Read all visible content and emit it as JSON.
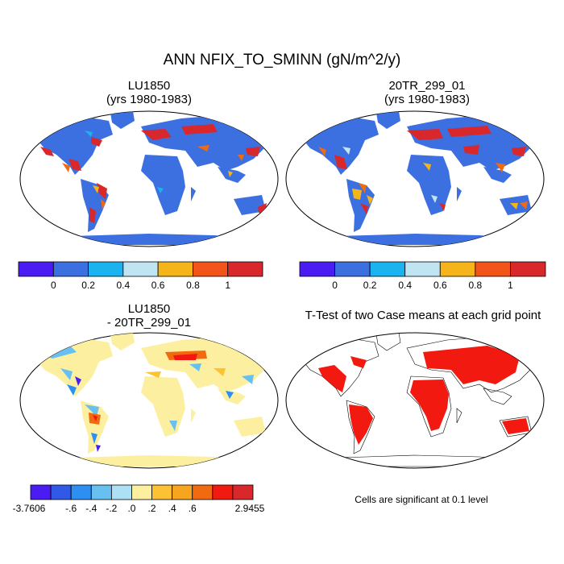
{
  "figure": {
    "title": "ANN NFIX_TO_SMINN (gN/m^2/y)"
  },
  "panels": {
    "top_left": {
      "title_line1": "LU1850",
      "title_line2": "(yrs 1980-1983)"
    },
    "top_right": {
      "title_line1": "20TR_299_01",
      "title_line2": "(yrs 1980-1983)"
    },
    "bottom_left": {
      "title_line1": "LU1850",
      "title_line2": "- 20TR_299_01"
    },
    "bottom_right": {
      "title_line1": "T-Test of two Case means at each grid point"
    }
  },
  "colorbar_top": {
    "colors": [
      "#4a1bf2",
      "#3c6fe0",
      "#1ab2ef",
      "#bfe4f2",
      "#f5b41a",
      "#f2541a",
      "#d8282c"
    ],
    "labels": [
      "0",
      "0.2",
      "0.4",
      "0.6",
      "0.8",
      "1"
    ]
  },
  "colorbar_diff": {
    "colors": [
      "#4a1bf2",
      "#2f59e6",
      "#2d8ff2",
      "#68c0f0",
      "#aee0f5",
      "#fcf0a0",
      "#fcc233",
      "#f7a41e",
      "#f26a10",
      "#f21a10",
      "#d8282c"
    ],
    "labels": [
      "-3.7606",
      "-.6",
      "-.4",
      "-.2",
      ".0",
      ".2",
      ".4",
      ".6",
      "2.9455"
    ]
  },
  "significance_note": "Cells are significant at 0.1 level",
  "chart_data": {
    "type": "heatmap",
    "title": "ANN NFIX_TO_SMINN (gN/m^2/y)",
    "units": "gN/m^2/y",
    "panels": [
      {
        "name": "LU1850",
        "period": "yrs 1980-1983",
        "contour_levels": [
          0,
          0.2,
          0.4,
          0.6,
          0.8,
          1
        ]
      },
      {
        "name": "20TR_299_01",
        "period": "yrs 1980-1983",
        "contour_levels": [
          0,
          0.2,
          0.4,
          0.6,
          0.8,
          1
        ]
      },
      {
        "name": "LU1850 - 20TR_299_01",
        "contour_levels": [
          -0.6,
          -0.4,
          -0.2,
          0.0,
          0.2,
          0.4,
          0.6
        ],
        "min": -3.7606,
        "max": 2.9455
      },
      {
        "name": "T-Test of two Case means at each grid point",
        "significance_level": 0.1
      }
    ]
  }
}
